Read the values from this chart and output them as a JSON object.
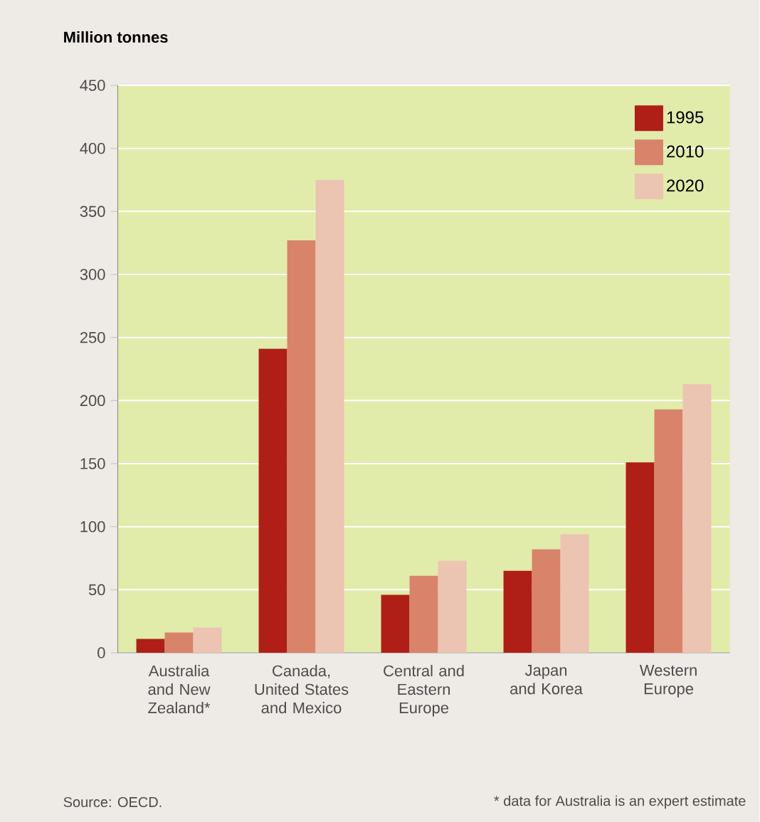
{
  "chart_data": {
    "type": "bar",
    "ylabel": "Million tonnes",
    "categories": [
      "Australia and New Zealand*",
      "Canada, United States and Mexico",
      "Central and Eastern Europe",
      "Japan and Korea",
      "Western Europe"
    ],
    "series": [
      {
        "name": "1995",
        "color": "#b01e18",
        "values": [
          11,
          241,
          46,
          65,
          151
        ]
      },
      {
        "name": "2010",
        "color": "#d9836b",
        "values": [
          16,
          327,
          61,
          82,
          193
        ]
      },
      {
        "name": "2020",
        "color": "#ecc4b2",
        "values": [
          20,
          375,
          73,
          94,
          213
        ]
      }
    ],
    "ylim": [
      0,
      450
    ],
    "yticks": [
      0,
      50,
      100,
      150,
      200,
      250,
      300,
      350,
      400,
      450
    ],
    "grid": "y",
    "legend": "top right",
    "annotations": [
      "Source: OECD.",
      "* data for Australia is an expert estimate"
    ]
  }
}
